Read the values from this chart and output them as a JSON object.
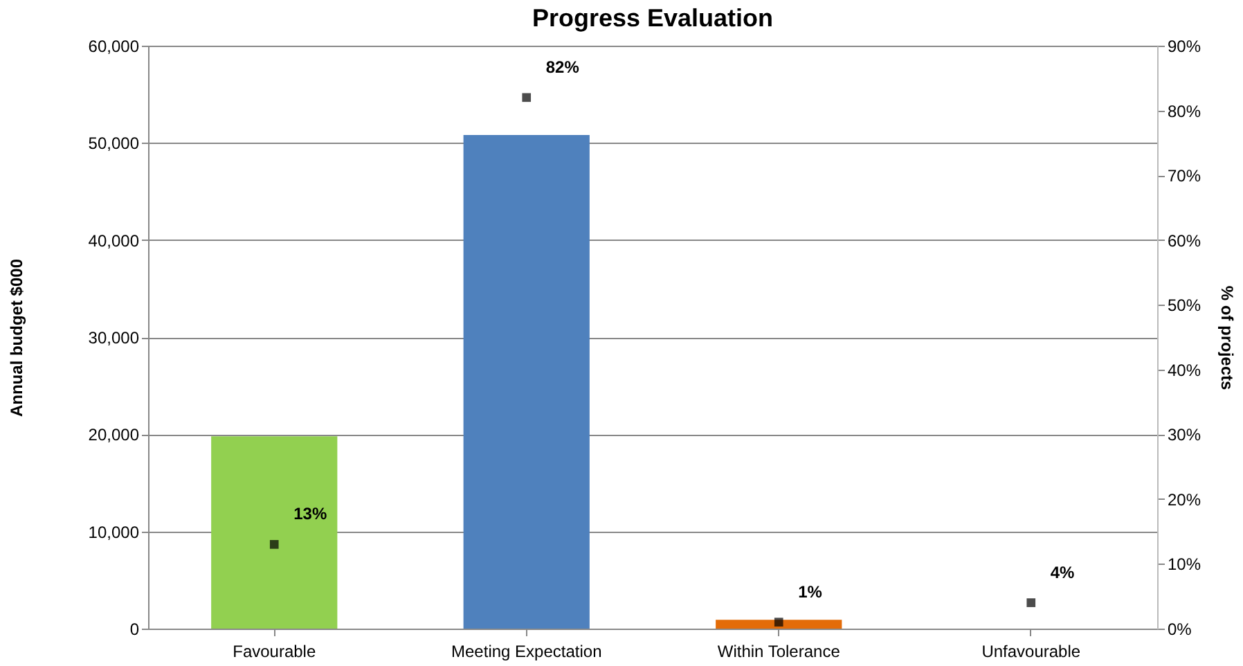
{
  "chart_data": {
    "type": "bar",
    "title": "Progress Evaluation",
    "ylabel": "Annual budget $000",
    "y2label": "% of projects",
    "categories": [
      "Favourable",
      "Meeting Expectation",
      "Within Tolerance",
      "Unfavourable"
    ],
    "series": [
      {
        "values": [
          19800,
          50800,
          900,
          0
        ],
        "colors": [
          "#92d050",
          "#4f81bd",
          "#e36c09",
          "#c0504d"
        ]
      },
      {
        "type": "scatter",
        "axis": "y2",
        "color": "#000000",
        "marker": "square",
        "values": [
          13,
          82,
          1,
          4
        ],
        "value_labels": [
          "13%",
          "82%",
          "1%",
          "4%"
        ]
      }
    ],
    "ylim": [
      0,
      60000
    ],
    "yticks": [
      {
        "value": 0,
        "label": "0"
      },
      {
        "value": 10000,
        "label": "10,000"
      },
      {
        "value": 20000,
        "label": "20,000"
      },
      {
        "value": 30000,
        "label": "30,000"
      },
      {
        "value": 40000,
        "label": "40,000"
      },
      {
        "value": 50000,
        "label": "50,000"
      },
      {
        "value": 60000,
        "label": "60,000"
      }
    ],
    "y2lim": [
      0,
      90
    ],
    "y2ticks": [
      {
        "value": 0,
        "label": "0%"
      },
      {
        "value": 10,
        "label": "10%"
      },
      {
        "value": 20,
        "label": "20%"
      },
      {
        "value": 30,
        "label": "30%"
      },
      {
        "value": 40,
        "label": "40%"
      },
      {
        "value": 50,
        "label": "50%"
      },
      {
        "value": 60,
        "label": "60%"
      },
      {
        "value": 70,
        "label": "70%"
      },
      {
        "value": 80,
        "label": "80%"
      },
      {
        "value": 90,
        "label": "90%"
      }
    ],
    "grid": "y"
  }
}
